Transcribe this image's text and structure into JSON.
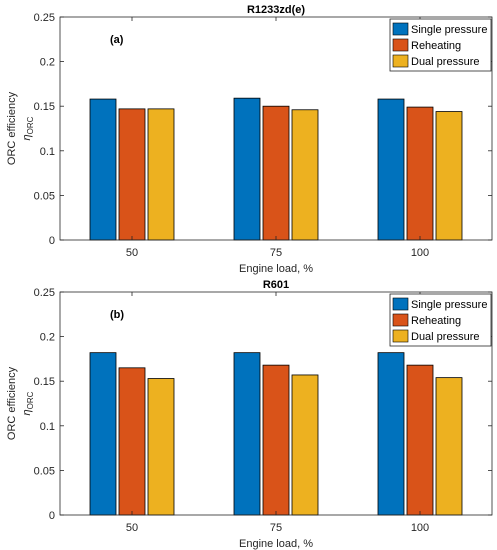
{
  "chart_data": [
    {
      "type": "bar",
      "title": "R1233zd(e)",
      "tag": "(a)",
      "xlabel": "Engine load, %",
      "ylabel": "ORC efficiency",
      "ylabel_symbol": "η",
      "ylabel_subscript": "ORC",
      "categories": [
        "50",
        "75",
        "100"
      ],
      "ylim": [
        0,
        0.25
      ],
      "yticks": [
        "0",
        "0.05",
        "0.1",
        "0.15",
        "0.2",
        "0.25"
      ],
      "legend_position": "top-right",
      "series": [
        {
          "name": "Single pressure",
          "color": "#0072BD",
          "values": [
            0.158,
            0.159,
            0.158
          ]
        },
        {
          "name": "Reheating",
          "color": "#D95319",
          "values": [
            0.147,
            0.15,
            0.149
          ]
        },
        {
          "name": "Dual pressure",
          "color": "#EDB120",
          "values": [
            0.147,
            0.146,
            0.144
          ]
        }
      ]
    },
    {
      "type": "bar",
      "title": "R601",
      "tag": "(b)",
      "xlabel": "Engine load, %",
      "ylabel": "ORC efficiency",
      "ylabel_symbol": "η",
      "ylabel_subscript": "ORC",
      "categories": [
        "50",
        "75",
        "100"
      ],
      "ylim": [
        0,
        0.25
      ],
      "yticks": [
        "0",
        "0.05",
        "0.1",
        "0.15",
        "0.2",
        "0.25"
      ],
      "legend_position": "top-right",
      "series": [
        {
          "name": "Single pressure",
          "color": "#0072BD",
          "values": [
            0.182,
            0.182,
            0.182
          ]
        },
        {
          "name": "Reheating",
          "color": "#D95319",
          "values": [
            0.165,
            0.168,
            0.168
          ]
        },
        {
          "name": "Dual pressure",
          "color": "#EDB120",
          "values": [
            0.153,
            0.157,
            0.154
          ]
        }
      ]
    }
  ]
}
